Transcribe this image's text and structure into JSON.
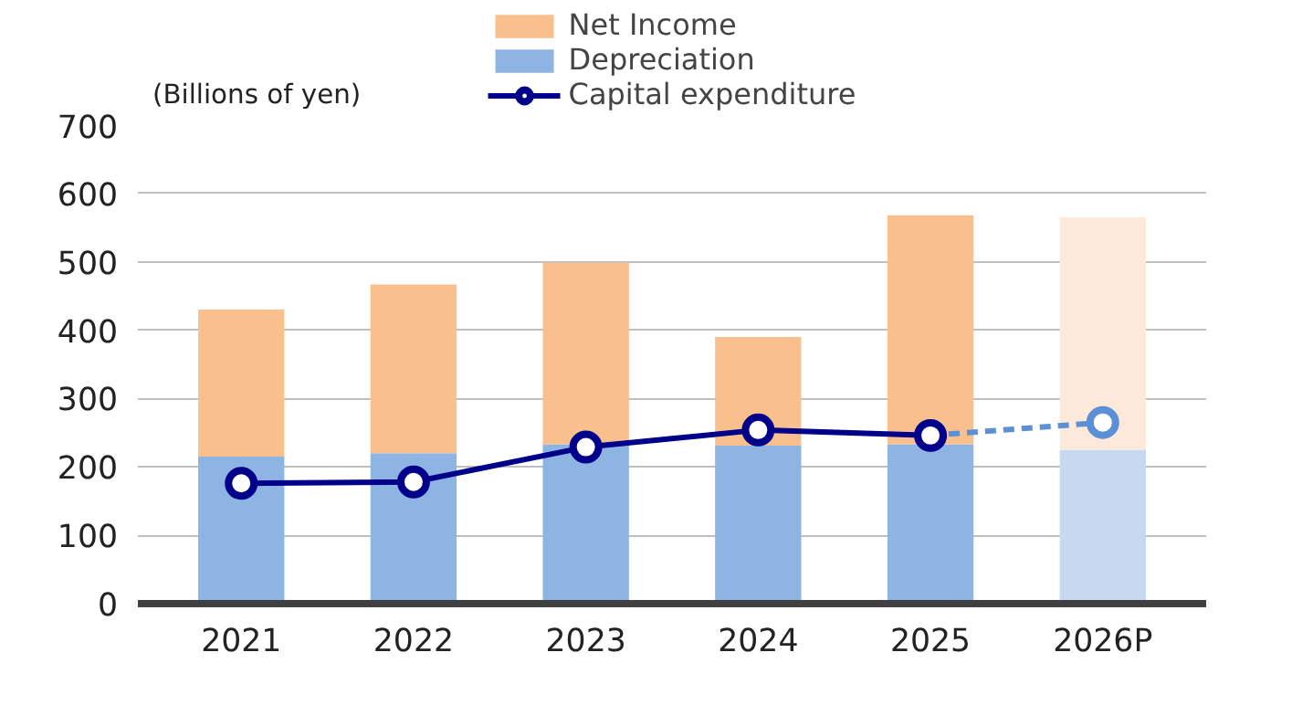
{
  "chart_data": {
    "type": "bar",
    "stacked": true,
    "ylabel": "(Billions of yen)",
    "categories": [
      "2021",
      "2022",
      "2023",
      "2024",
      "2025",
      "2026P"
    ],
    "ylim": [
      0,
      700
    ],
    "yticks": [
      0,
      100,
      200,
      300,
      400,
      500,
      600,
      700
    ],
    "grid": "y",
    "legend": "top",
    "series": [
      {
        "name": "Depreciation",
        "color": "#8eb4e3",
        "colors": [
          "#8eb4e3",
          "#8eb4e3",
          "#8eb4e3",
          "#8eb4e3",
          "#8eb4e3",
          "#c6d9f0"
        ],
        "values": [
          215,
          220,
          233,
          231,
          233,
          225
        ]
      },
      {
        "name": "Net Income",
        "color": "#f9c08e",
        "colors": [
          "#f9c08e",
          "#f9c08e",
          "#f9c08e",
          "#f9c08e",
          "#f9c08e",
          "#fde9d9"
        ],
        "values": [
          215,
          247,
          266,
          159,
          335,
          340
        ]
      },
      {
        "type": "line",
        "color": "#5b8fd6",
        "marker": "circle",
        "line_style": "dashed",
        "values": [
          null,
          null,
          null,
          null,
          246,
          265
        ]
      },
      {
        "name": "Capital expenditure",
        "type": "line",
        "color": "#00008b",
        "marker": "circle",
        "line_style": "solid",
        "values": [
          176,
          178,
          229,
          254,
          246,
          null
        ]
      }
    ]
  }
}
